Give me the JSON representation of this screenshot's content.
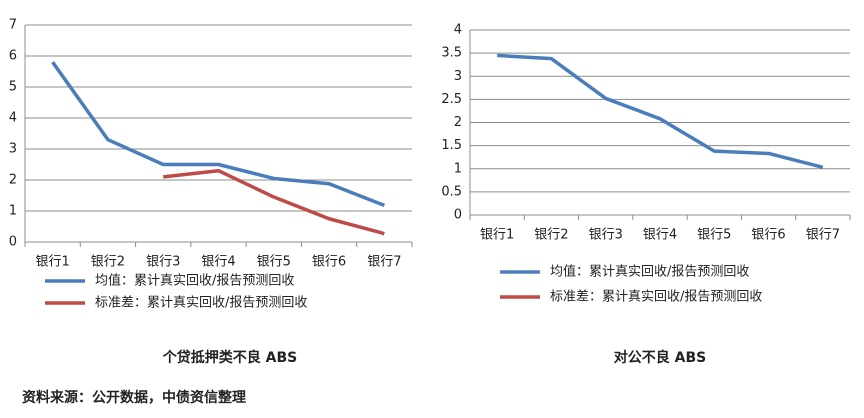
{
  "chart_data": [
    {
      "type": "line",
      "title": "个贷抵押类不良 ABS",
      "categories": [
        "银行1",
        "银行2",
        "银行3",
        "银行4",
        "银行5",
        "银行6",
        "银行7"
      ],
      "series": [
        {
          "name": "均值：累计真实回收/报告预测回收",
          "color": "#4a7ebb",
          "values": [
            5.8,
            3.3,
            2.5,
            2.5,
            2.05,
            1.88,
            1.18
          ]
        },
        {
          "name": "标准差：累计真实回收/报告预测回收",
          "color": "#be4b48",
          "values": [
            null,
            null,
            2.1,
            2.3,
            1.45,
            0.75,
            0.27
          ]
        }
      ],
      "ylim": [
        0,
        7
      ],
      "yticks": [
        0,
        1,
        2,
        3,
        4,
        5,
        6,
        7
      ],
      "grid": true
    },
    {
      "type": "line",
      "title": "对公不良 ABS",
      "categories": [
        "银行1",
        "银行2",
        "银行3",
        "银行4",
        "银行5",
        "银行6",
        "银行7"
      ],
      "series": [
        {
          "name": "均值：累计真实回收/报告预测回收",
          "color": "#4a7ebb",
          "values": [
            3.45,
            3.38,
            2.52,
            2.08,
            1.38,
            1.33,
            1.03
          ]
        },
        {
          "name": "标准差：累计真实回收/报告预测回收",
          "color": "#be4b48",
          "values": [
            null,
            null,
            null,
            null,
            null,
            null,
            null
          ]
        }
      ],
      "ylim": [
        0,
        4
      ],
      "yticks": [
        0,
        0.5,
        1,
        1.5,
        2,
        2.5,
        3,
        3.5,
        4
      ],
      "grid": true
    }
  ],
  "source": "资料来源：公开数据，中债资信整理"
}
